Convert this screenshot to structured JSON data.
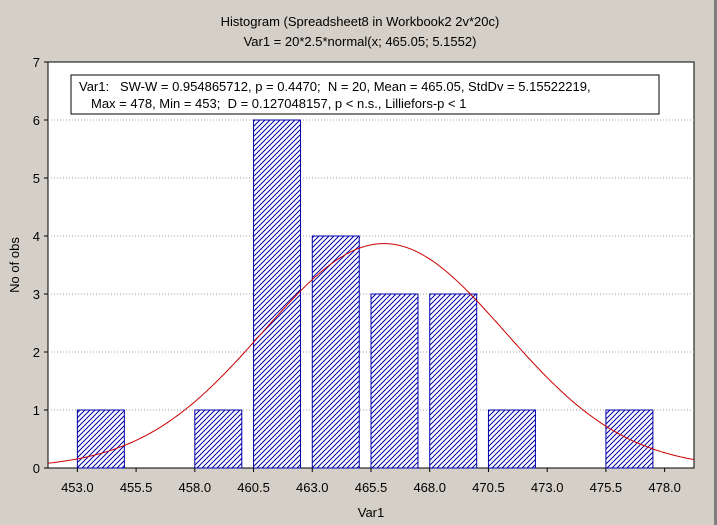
{
  "chart_data": {
    "type": "histogram",
    "title": "Histogram (Spreadsheet8 in Workbook2 2v*20c)",
    "subtitle": "Var1 = 20*2.5*normal(x; 465.05; 5.1552)",
    "xlabel": "Var1",
    "ylabel": "No of obs",
    "x_tick_labels": [
      "453.0",
      "455.5",
      "458.0",
      "460.5",
      "463.0",
      "465.5",
      "468.0",
      "470.5",
      "473.0",
      "475.5",
      "478.0"
    ],
    "y_tick_labels": [
      "0",
      "1",
      "2",
      "3",
      "4",
      "5",
      "6",
      "7"
    ],
    "xlim": [
      451.75,
      479.25
    ],
    "ylim": [
      0,
      7
    ],
    "grid": true,
    "bars": [
      {
        "x_start": 453.0,
        "x_end": 455.0,
        "count": 1
      },
      {
        "x_start": 455.5,
        "x_end": 457.5,
        "count": 0
      },
      {
        "x_start": 458.0,
        "x_end": 460.0,
        "count": 1
      },
      {
        "x_start": 460.5,
        "x_end": 462.5,
        "count": 6
      },
      {
        "x_start": 463.0,
        "x_end": 465.0,
        "count": 4
      },
      {
        "x_start": 465.5,
        "x_end": 467.5,
        "count": 3
      },
      {
        "x_start": 468.0,
        "x_end": 470.0,
        "count": 3
      },
      {
        "x_start": 470.5,
        "x_end": 472.5,
        "count": 1
      },
      {
        "x_start": 473.0,
        "x_end": 475.0,
        "count": 0
      },
      {
        "x_start": 475.5,
        "x_end": 477.5,
        "count": 1
      }
    ],
    "fit_curve": {
      "type": "normal",
      "n": 20,
      "bin_width": 2.5,
      "mean": 465.05,
      "sd": 5.1552
    },
    "stats_box": {
      "line1": "Var1:   SW-W = 0.954865712, p = 0.4470;  N = 20, Mean = 465.05, StdDv = 5.15522219,",
      "line2": "Max = 478, Min = 453;  D = 0.127048157, p < n.s., Lilliefors-p < 1"
    },
    "colors": {
      "bar_stroke": "#0000a8",
      "bar_hatch": "#0000a8",
      "curve": "#cc0000",
      "background": "#d4d0c8",
      "plot_background": "#ffffff",
      "grid": "#a0a0a0"
    }
  }
}
